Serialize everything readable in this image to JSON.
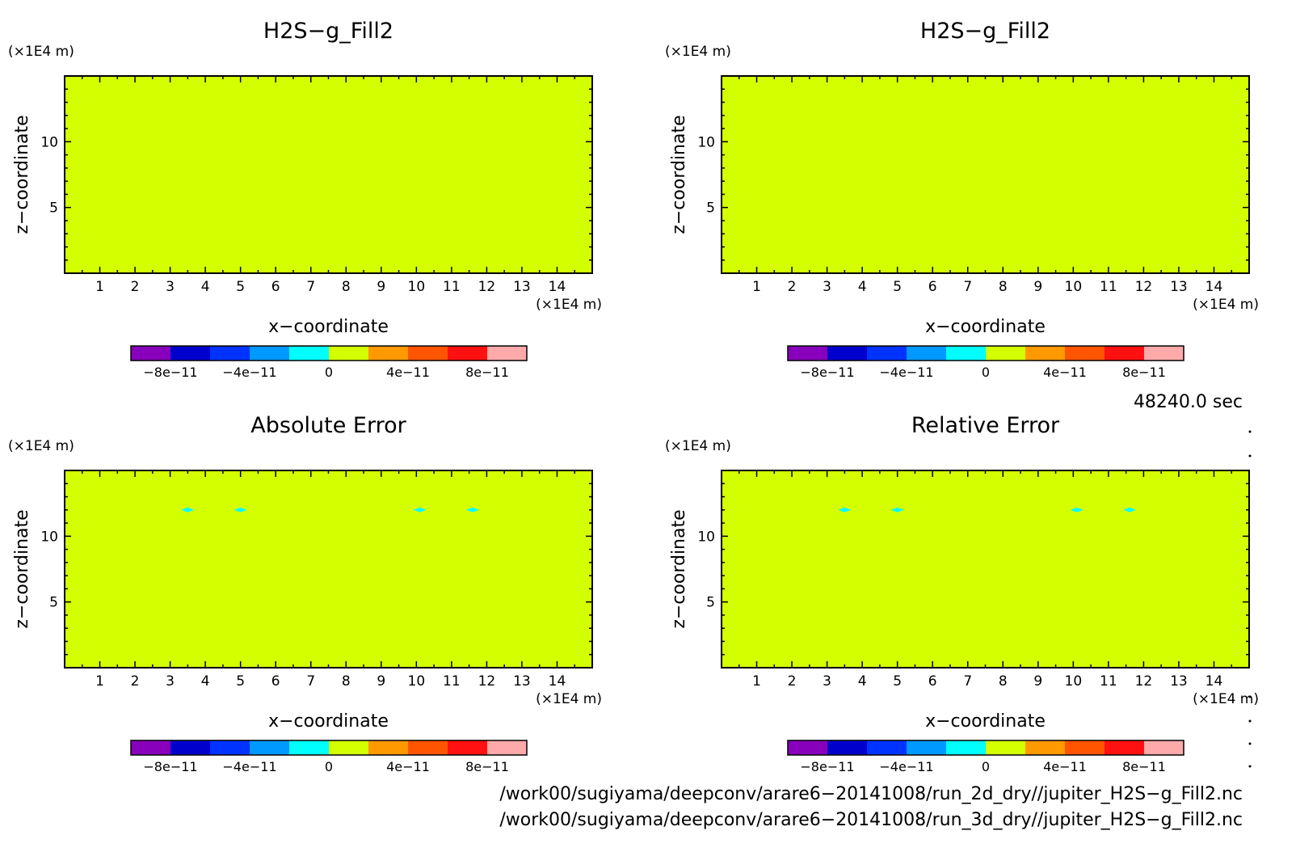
{
  "chart_data": [
    {
      "type": "heatmap",
      "title": "H2S−g_Fill2",
      "xlabel": "x−coordinate",
      "ylabel": "z−coordinate",
      "x_unit": "(×1E4 m)",
      "y_unit": "(×1E4 m)",
      "xlim": [
        0,
        15
      ],
      "ylim": [
        0,
        15
      ],
      "x_ticks": [
        "1",
        "2",
        "3",
        "4",
        "5",
        "6",
        "7",
        "8",
        "9",
        "10",
        "11",
        "12",
        "13",
        "14"
      ],
      "y_ticks": [
        "5",
        "10"
      ],
      "fill_color": "#d4ff00",
      "spots": []
    },
    {
      "type": "heatmap",
      "title": "H2S−g_Fill2",
      "xlabel": "x−coordinate",
      "ylabel": "z−coordinate",
      "x_unit": "(×1E4 m)",
      "y_unit": "(×1E4 m)",
      "xlim": [
        0,
        15
      ],
      "ylim": [
        0,
        15
      ],
      "x_ticks": [
        "1",
        "2",
        "3",
        "4",
        "5",
        "6",
        "7",
        "8",
        "9",
        "10",
        "11",
        "12",
        "13",
        "14"
      ],
      "y_ticks": [
        "5",
        "10"
      ],
      "fill_color": "#d4ff00",
      "spots": []
    },
    {
      "type": "heatmap",
      "title": "Absolute Error",
      "xlabel": "x−coordinate",
      "ylabel": "z−coordinate",
      "x_unit": "(×1E4 m)",
      "y_unit": "(×1E4 m)",
      "xlim": [
        0,
        15
      ],
      "ylim": [
        0,
        15
      ],
      "x_ticks": [
        "1",
        "2",
        "3",
        "4",
        "5",
        "6",
        "7",
        "8",
        "9",
        "10",
        "11",
        "12",
        "13",
        "14"
      ],
      "y_ticks": [
        "5",
        "10"
      ],
      "fill_color": "#d4ff00",
      "spots": [
        {
          "x": 3.5,
          "z": 12.0,
          "color": "#00ffff"
        },
        {
          "x": 5.0,
          "z": 12.0,
          "color": "#00ffff"
        },
        {
          "x": 10.1,
          "z": 12.0,
          "color": "#00ffff"
        },
        {
          "x": 11.6,
          "z": 12.0,
          "color": "#00ffff"
        }
      ]
    },
    {
      "type": "heatmap",
      "title": "Relative Error",
      "xlabel": "x−coordinate",
      "ylabel": "z−coordinate",
      "x_unit": "(×1E4 m)",
      "y_unit": "(×1E4 m)",
      "xlim": [
        0,
        15
      ],
      "ylim": [
        0,
        15
      ],
      "x_ticks": [
        "1",
        "2",
        "3",
        "4",
        "5",
        "6",
        "7",
        "8",
        "9",
        "10",
        "11",
        "12",
        "13",
        "14"
      ],
      "y_ticks": [
        "5",
        "10"
      ],
      "fill_color": "#d4ff00",
      "spots": [
        {
          "x": 3.5,
          "z": 12.0,
          "color": "#00ffff"
        },
        {
          "x": 5.0,
          "z": 12.0,
          "color": "#00ffff"
        },
        {
          "x": 10.1,
          "z": 12.0,
          "color": "#00ffff"
        },
        {
          "x": 11.6,
          "z": 12.0,
          "color": "#00ffff"
        }
      ]
    }
  ],
  "colorbar": {
    "colors": [
      "#8800bb",
      "#0000cc",
      "#0033ff",
      "#0099ff",
      "#00ffff",
      "#d4ff00",
      "#ff9900",
      "#ff5500",
      "#ff1111",
      "#ffaaaa"
    ],
    "labels": [
      "−8e−11",
      "−4e−11",
      "0",
      "4e−11",
      "8e−11"
    ]
  },
  "time_label": "48240.0 sec",
  "files": [
    "/work00/sugiyama/deepconv/arare6−20141008/run_2d_dry//jupiter_H2S−g_Fill2.nc",
    "/work00/sugiyama/deepconv/arare6−20141008/run_3d_dry//jupiter_H2S−g_Fill2.nc"
  ]
}
